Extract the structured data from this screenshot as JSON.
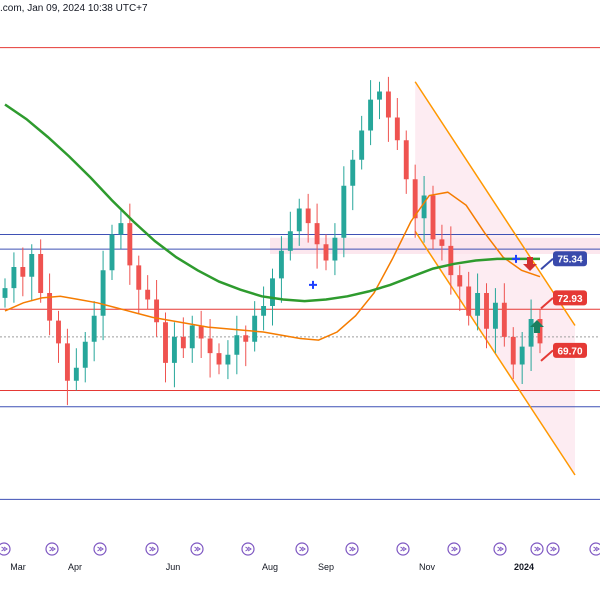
{
  "header": {
    "text": ".com, Jan 09, 2024 10:38 UTC+7"
  },
  "colors": {
    "bull": "#26a69a",
    "bear": "#ef5350",
    "ma_fast": "#f57c00",
    "ma_slow": "#2e9b2e",
    "hline_red": "#e53935",
    "hline_blue": "#3f51b5",
    "channel": "#ff9800",
    "channel_fill": "#fce4ec",
    "tag_blue": "#3949ab",
    "tag_red": "#e53935",
    "arrow_up": "#1b7f5f",
    "arrow_down": "#d32f2f"
  },
  "chart_data": {
    "type": "candlestick",
    "title": "",
    "x_ticks": [
      "Mar",
      "Apr",
      "Jun",
      "Aug",
      "Sep",
      "Nov",
      "2024"
    ],
    "y_range": [
      58,
      90
    ],
    "price_tags": [
      {
        "label": "75.34",
        "value": 75.34,
        "color": "#3949ab"
      },
      {
        "label": "72.93",
        "value": 72.93,
        "color": "#e53935"
      },
      {
        "label": "69.70",
        "value": 69.7,
        "color": "#e53935"
      }
    ],
    "horizontal_levels": [
      {
        "value": 88.3,
        "color": "#e53935"
      },
      {
        "value": 76.8,
        "color": "#3f51b5"
      },
      {
        "value": 75.9,
        "color": "#3f51b5"
      },
      {
        "value": 72.2,
        "color": "#e53935"
      },
      {
        "value": 70.5,
        "color": "#9e9e9e",
        "dashed": true
      },
      {
        "value": 67.2,
        "color": "#e53935"
      },
      {
        "value": 66.2,
        "color": "#3f51b5"
      },
      {
        "value": 60.5,
        "color": "#3f51b5"
      }
    ],
    "candles_weekly_close": [
      73.5,
      74.8,
      74.2,
      75.6,
      73.2,
      71.5,
      70.1,
      67.8,
      68.6,
      70.2,
      71.8,
      74.6,
      76.8,
      77.5,
      74.9,
      73.4,
      72.8,
      71.4,
      68.9,
      70.5,
      69.8,
      71.2,
      70.4,
      69.5,
      68.8,
      69.4,
      70.6,
      70.2,
      71.8,
      72.4,
      74.1,
      75.8,
      77.0,
      78.4,
      77.5,
      76.2,
      75.2,
      76.6,
      79.8,
      81.4,
      83.2,
      85.1,
      85.6,
      84.0,
      82.6,
      80.2,
      77.8,
      79.2,
      76.5,
      76.1,
      74.3,
      73.6,
      71.8,
      73.2,
      71.0,
      72.6,
      70.5,
      68.8,
      69.9,
      71.6,
      70.1
    ],
    "moving_averages": [
      {
        "period": "fast",
        "values": [
          72.1,
          72.6,
          72.9,
          73.0,
          72.8,
          72.6,
          72.3,
          72.0,
          71.7,
          71.5,
          71.3,
          71.1,
          71.0,
          70.9,
          70.8,
          70.6,
          70.4,
          70.3,
          70.8,
          71.8,
          73.2,
          75.3,
          77.6,
          79.2,
          79.4,
          78.6,
          76.9,
          75.4,
          74.6,
          74.2
        ]
      },
      {
        "period": "slow",
        "values": [
          84.8,
          83.9,
          82.8,
          81.6,
          80.3,
          78.9,
          77.6,
          76.4,
          75.4,
          74.6,
          73.9,
          73.4,
          73.0,
          72.8,
          72.7,
          72.8,
          73.0,
          73.3,
          73.7,
          74.2,
          74.7,
          75.0,
          75.2,
          75.3,
          75.3,
          75.3
        ]
      }
    ],
    "channel": {
      "upper_start": 86.2,
      "upper_end": 71.2,
      "lower_start": 77.0,
      "lower_end": 62.0
    }
  }
}
